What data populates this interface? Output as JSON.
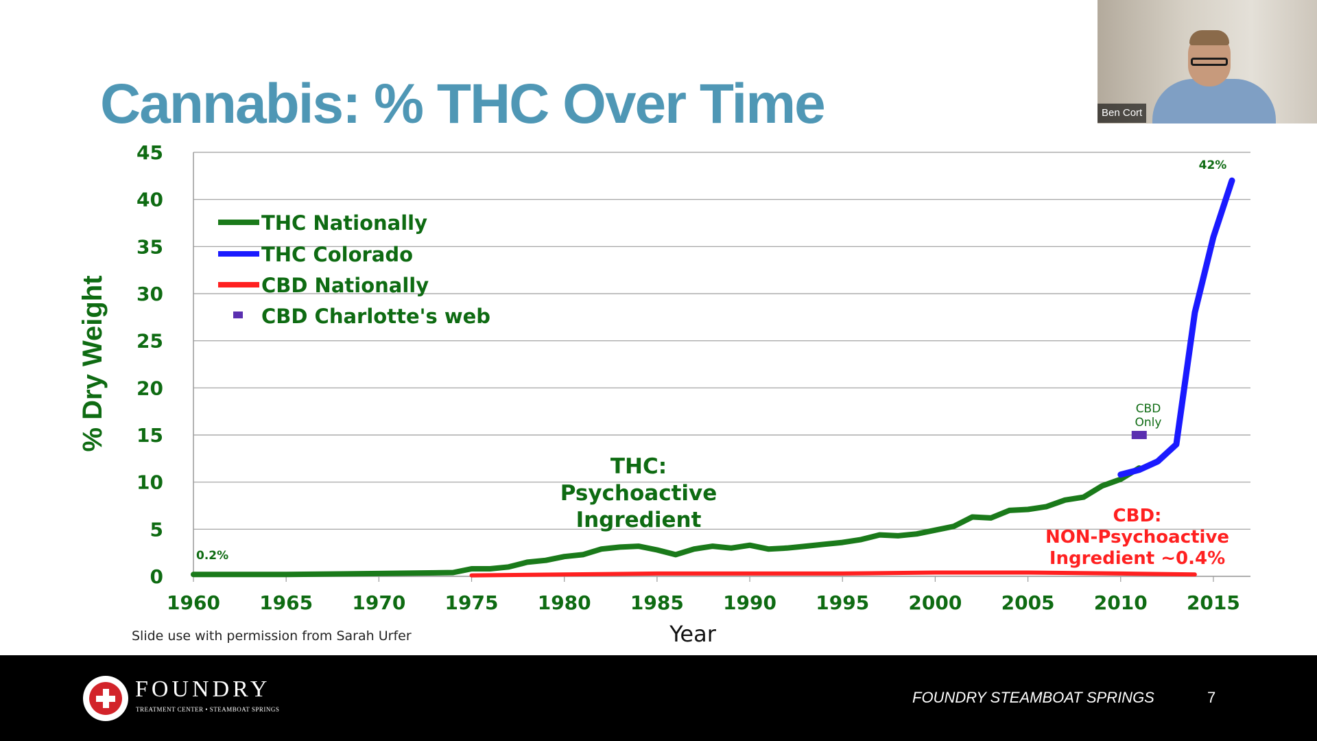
{
  "slide": {
    "title": "Cannabis: % THC Over Time",
    "credit": "Slide use with permission from Sarah Urfer",
    "footer_text": "FOUNDRY STEAMBOAT SPRINGS",
    "page_number": "7"
  },
  "brand": {
    "name": "FOUNDRY",
    "tagline": "TREATMENT CENTER • STEAMBOAT SPRINGS",
    "logo_icon": "red-cross-logo-icon"
  },
  "video": {
    "participant_name": "Ben Cort"
  },
  "chart_data": {
    "type": "line",
    "xlabel": "Year",
    "ylabel": "% Dry Weight",
    "xlim": [
      1960,
      2017
    ],
    "ylim": [
      0,
      45
    ],
    "x_ticks": [
      1960,
      1965,
      1970,
      1975,
      1980,
      1985,
      1990,
      1995,
      2000,
      2005,
      2010,
      2015
    ],
    "y_ticks": [
      0,
      5,
      10,
      15,
      20,
      25,
      30,
      35,
      40,
      45
    ],
    "grid": "horizontal",
    "legend_position": "top-left",
    "series": [
      {
        "name": "THC Nationally",
        "color": "#1a7a1a",
        "x": [
          1960,
          1965,
          1970,
          1974,
          1975,
          1976,
          1977,
          1978,
          1979,
          1980,
          1981,
          1982,
          1983,
          1984,
          1985,
          1986,
          1987,
          1988,
          1989,
          1990,
          1991,
          1992,
          1993,
          1994,
          1995,
          1996,
          1997,
          1998,
          1999,
          2000,
          2001,
          2002,
          2003,
          2004,
          2005,
          2006,
          2007,
          2008,
          2009,
          2010,
          2011
        ],
        "y": [
          0.2,
          0.2,
          0.3,
          0.4,
          0.8,
          0.8,
          1.0,
          1.5,
          1.7,
          2.1,
          2.3,
          2.9,
          3.1,
          3.2,
          2.8,
          2.3,
          2.9,
          3.2,
          3.0,
          3.3,
          2.9,
          3.0,
          3.2,
          3.4,
          3.6,
          3.9,
          4.4,
          4.3,
          4.5,
          4.9,
          5.3,
          6.3,
          6.2,
          7.0,
          7.1,
          7.4,
          8.1,
          8.4,
          9.6,
          10.3,
          11.5
        ]
      },
      {
        "name": "THC Colorado",
        "color": "#1a1aff",
        "x": [
          2010,
          2011,
          2012,
          2013,
          2014,
          2015,
          2016
        ],
        "y": [
          10.8,
          11.3,
          12.2,
          14.0,
          28.0,
          36.0,
          42.0
        ]
      },
      {
        "name": "CBD Nationally",
        "color": "#ff2020",
        "x": [
          1975,
          1980,
          1985,
          1990,
          1995,
          2000,
          2005,
          2010,
          2014
        ],
        "y": [
          0.1,
          0.2,
          0.3,
          0.3,
          0.3,
          0.4,
          0.4,
          0.3,
          0.2
        ]
      },
      {
        "name": "CBD Charlotte's web",
        "color": "#5a2fb0",
        "marker": "square",
        "x": [
          2011
        ],
        "y": [
          15
        ]
      }
    ],
    "annotations": {
      "start_value": "0.2%",
      "end_value": "42%",
      "cbd_only": [
        "CBD",
        "Only"
      ],
      "thc_label": [
        "THC:",
        "Psychoactive",
        "Ingredient"
      ],
      "cbd_label": [
        "CBD:",
        "NON-Psychoactive",
        "Ingredient ~0.4%"
      ]
    }
  }
}
